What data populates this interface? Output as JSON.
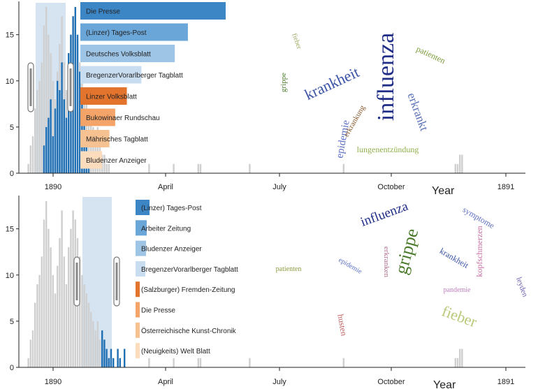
{
  "colors": {
    "highlight": "#d6e4f2",
    "hist_gray": "#cfcfcf",
    "hist_blue": "#1f6fb4",
    "axis": "#222222"
  },
  "chart_data": [
    {
      "type": "bar",
      "x_tick_labels": [
        "1890",
        "April",
        "July",
        "October",
        "1891"
      ],
      "xlabel": "Year",
      "y_ticks": [
        0,
        5,
        10,
        15
      ],
      "ylim": [
        0,
        18
      ],
      "histogram": {
        "gray": [
          0,
          0,
          1,
          3,
          4,
          7,
          9,
          10,
          12,
          16,
          18,
          15,
          13,
          10,
          8,
          11,
          14,
          17,
          12,
          9,
          13,
          15,
          17,
          16,
          14,
          12,
          10,
          9,
          8,
          7,
          6,
          5,
          4,
          5,
          3,
          2,
          2,
          1,
          1,
          0,
          0,
          0,
          0,
          0,
          0,
          0,
          0,
          0,
          0,
          0,
          0,
          0,
          0,
          0,
          0,
          0,
          1,
          0,
          0,
          0,
          0,
          0,
          0,
          0,
          0,
          0,
          0,
          1,
          0,
          0,
          0,
          0,
          0,
          0,
          0,
          0,
          0,
          0,
          1,
          1,
          0,
          0,
          0,
          0,
          0,
          0,
          0,
          0,
          0,
          0,
          0,
          0,
          0,
          0,
          0,
          0,
          0,
          0,
          0,
          0,
          0,
          1,
          0,
          0,
          0,
          0,
          0,
          0,
          0,
          0,
          0,
          0,
          0,
          0,
          0,
          0,
          0,
          0,
          0,
          0,
          0,
          0,
          0,
          0,
          0,
          0,
          0,
          0,
          0,
          0,
          0,
          0,
          0,
          0,
          0,
          0,
          0,
          0,
          0,
          0,
          0,
          0,
          0,
          1,
          0,
          0,
          0,
          0,
          0,
          0,
          0,
          0,
          0,
          0,
          0,
          0,
          0,
          0,
          0,
          0,
          0,
          0,
          0,
          0,
          0,
          0,
          0,
          0,
          0,
          0,
          0,
          0,
          0,
          0,
          0,
          0,
          0,
          0,
          0,
          0,
          0,
          0,
          0,
          0,
          0,
          0,
          0,
          0,
          0,
          0,
          0,
          0,
          0,
          1,
          1,
          2,
          2,
          0,
          0,
          0,
          0,
          0,
          0,
          0,
          0,
          0,
          0,
          0,
          0,
          0,
          0,
          0,
          0,
          0,
          0,
          0,
          0,
          0
        ],
        "blue": [
          0,
          0,
          0,
          0,
          0,
          0,
          0,
          0,
          0,
          3,
          5,
          6,
          8,
          4,
          7,
          10,
          9,
          12,
          8,
          6,
          13,
          15,
          17,
          18,
          15,
          11,
          8,
          6,
          4,
          2,
          0,
          0,
          0,
          0,
          0,
          0,
          0,
          0,
          0,
          0,
          0,
          0,
          0,
          0,
          0,
          0,
          0,
          0,
          0,
          0,
          0,
          0,
          0,
          0,
          0,
          0,
          0,
          0,
          0,
          0,
          0,
          0,
          0,
          0,
          0,
          0,
          0,
          0,
          0,
          0,
          0,
          0,
          0,
          0,
          0,
          0,
          0,
          0,
          0,
          0,
          0,
          0,
          0,
          0,
          0,
          0,
          0,
          0,
          0,
          0,
          0,
          0,
          0,
          0,
          0,
          0,
          0,
          0,
          0,
          0,
          0,
          0,
          0,
          0,
          0,
          0,
          0,
          0,
          0,
          0,
          0,
          0,
          0,
          0,
          0,
          0,
          0,
          0,
          0,
          0,
          0,
          0,
          0,
          0,
          0,
          0,
          0,
          0,
          0,
          0,
          0,
          0,
          0,
          0,
          0,
          0,
          0,
          0,
          0,
          0,
          0,
          0,
          0,
          0,
          0,
          0,
          0,
          0,
          0,
          0,
          0,
          0,
          0,
          0,
          0,
          0,
          0,
          0,
          0,
          0,
          0,
          0,
          0,
          0,
          0,
          0,
          0,
          0,
          0,
          0,
          0,
          0,
          0,
          0,
          0,
          0,
          0,
          0,
          0,
          0,
          0,
          0,
          0,
          0,
          0,
          0,
          0,
          0,
          0,
          0,
          0,
          0,
          0,
          0,
          0,
          0,
          0,
          0,
          0,
          0,
          0,
          0,
          0,
          0,
          0,
          0,
          0,
          0,
          0,
          0,
          0,
          0,
          0,
          0,
          0,
          0,
          0
        ]
      },
      "newspapers": [
        {
          "name": "Die Presse",
          "value": 1.0,
          "color": "#3d86c6"
        },
        {
          "name": "(Linzer) Tages-Post",
          "value": 0.74,
          "color": "#6aa6d8"
        },
        {
          "name": "Deutsches Volksblatt",
          "value": 0.65,
          "color": "#9ec4e6"
        },
        {
          "name": "BregenzerVorarlberger Tagblatt",
          "value": 0.42,
          "color": "#c9ddf0"
        },
        {
          "name": "Linzer Volksblatt",
          "value": 0.32,
          "color": "#e3742e"
        },
        {
          "name": "Bukowinaer Rundschau",
          "value": 0.24,
          "color": "#f4a469"
        },
        {
          "name": "Mährisches Tagblatt",
          "value": 0.2,
          "color": "#f7c292"
        },
        {
          "name": "Bludenzer Anzeiger",
          "value": 0.15,
          "color": "#fbdcbd"
        }
      ],
      "wordcloud": [
        {
          "w": "influenza",
          "size": 34,
          "color": "#1f2d86",
          "rot": -90
        },
        {
          "w": "krankheit",
          "size": 22,
          "color": "#3a53a6",
          "rot": -25
        },
        {
          "w": "erkrankt",
          "size": 17,
          "color": "#5b72b8",
          "rot": 70
        },
        {
          "w": "epidemie",
          "size": 15,
          "color": "#5d6fc4",
          "rot": -80
        },
        {
          "w": "lungenentzündung",
          "size": 12,
          "color": "#8fb04a",
          "rot": 0
        },
        {
          "w": "patienten",
          "size": 12,
          "color": "#7a9a3a",
          "rot": 25
        },
        {
          "w": "grippe",
          "size": 11,
          "color": "#4a7a2a",
          "rot": -90
        },
        {
          "w": "erkrankung",
          "size": 11,
          "color": "#8a5a30",
          "rot": -60
        },
        {
          "w": "fieber",
          "size": 10,
          "color": "#9aaa60",
          "rot": 70
        }
      ]
    },
    {
      "type": "bar",
      "x_tick_labels": [
        "1890",
        "April",
        "July",
        "October",
        "1891"
      ],
      "xlabel": "Year",
      "y_ticks": [
        0,
        5,
        10,
        15
      ],
      "ylim": [
        0,
        18
      ],
      "histogram": {
        "gray": [
          0,
          0,
          1,
          3,
          4,
          7,
          9,
          10,
          12,
          16,
          18,
          15,
          13,
          10,
          8,
          11,
          14,
          17,
          12,
          9,
          13,
          15,
          17,
          16,
          14,
          12,
          10,
          9,
          8,
          7,
          6,
          5,
          4,
          5,
          3,
          2,
          2,
          1,
          1,
          0,
          0,
          0,
          0,
          0,
          0,
          0,
          0,
          0,
          0,
          0,
          0,
          0,
          0,
          0,
          0,
          0,
          1,
          0,
          0,
          0,
          0,
          0,
          0,
          0,
          0,
          0,
          0,
          1,
          0,
          0,
          0,
          0,
          0,
          0,
          0,
          0,
          0,
          0,
          1,
          1,
          0,
          0,
          0,
          0,
          0,
          0,
          0,
          0,
          0,
          0,
          0,
          0,
          0,
          0,
          0,
          0,
          0,
          0,
          0,
          0,
          0,
          1,
          0,
          0,
          0,
          0,
          0,
          0,
          0,
          0,
          0,
          0,
          0,
          0,
          0,
          0,
          0,
          0,
          0,
          0,
          0,
          0,
          0,
          0,
          0,
          0,
          0,
          0,
          0,
          0,
          0,
          0,
          0,
          0,
          0,
          0,
          0,
          0,
          0,
          0,
          0,
          0,
          0,
          1,
          0,
          0,
          0,
          0,
          0,
          0,
          0,
          0,
          0,
          0,
          0,
          0,
          0,
          0,
          0,
          0,
          0,
          0,
          0,
          0,
          0,
          0,
          0,
          0,
          0,
          0,
          0,
          0,
          0,
          0,
          0,
          0,
          0,
          0,
          0,
          0,
          0,
          0,
          0,
          0,
          0,
          0,
          0,
          0,
          0,
          0,
          0,
          0,
          0,
          1,
          1,
          2,
          2,
          0,
          0,
          0,
          0,
          0,
          0,
          0,
          0,
          0,
          0,
          0,
          0,
          0,
          0,
          0,
          0,
          0,
          0,
          0,
          0,
          0
        ],
        "blue": [
          0,
          0,
          0,
          0,
          0,
          0,
          0,
          0,
          0,
          0,
          0,
          0,
          0,
          0,
          0,
          0,
          0,
          0,
          0,
          0,
          0,
          0,
          0,
          0,
          0,
          0,
          0,
          0,
          0,
          0,
          0,
          0,
          0,
          0,
          0,
          4,
          3,
          2,
          1,
          2,
          1,
          0,
          2,
          1,
          0,
          2,
          0,
          0,
          0,
          0,
          0,
          0,
          0,
          0,
          0,
          0,
          0,
          0,
          0,
          0,
          0,
          0,
          0,
          0,
          0,
          0,
          0,
          0,
          0,
          0,
          0,
          0,
          0,
          0,
          0,
          0,
          0,
          0,
          0,
          0,
          0,
          0,
          0,
          0,
          0,
          0,
          0,
          0,
          0,
          0,
          0,
          0,
          0,
          0,
          0,
          0,
          0,
          0,
          0,
          0,
          0,
          0,
          0,
          0,
          0,
          0,
          0,
          0,
          0,
          0,
          0,
          0,
          0,
          0,
          0,
          0,
          0,
          0,
          0,
          0,
          0,
          0,
          0,
          0,
          0,
          0,
          0,
          0,
          0,
          0,
          0,
          0,
          0,
          0,
          0,
          0,
          0,
          0,
          0,
          0,
          0,
          0,
          0,
          0,
          0,
          0,
          0,
          0,
          0,
          0,
          0,
          0,
          0,
          0,
          0,
          0,
          0,
          0,
          0,
          0,
          0,
          0,
          0,
          0,
          0,
          0,
          0,
          0,
          0,
          0,
          0,
          0,
          0,
          0,
          0,
          0,
          0,
          0,
          0,
          0,
          0,
          0,
          0,
          0,
          0,
          0,
          0,
          0,
          0,
          0,
          0,
          0,
          0,
          0,
          0,
          0,
          0,
          0,
          0,
          0,
          0,
          0,
          0,
          0,
          0,
          0,
          0,
          0,
          0,
          0,
          0,
          0
        ]
      },
      "newspapers": [
        {
          "name": "(Linzer) Tages-Post",
          "value": 1.0,
          "color": "#3d86c6"
        },
        {
          "name": "Arbeiter Zeitung",
          "value": 0.8,
          "color": "#6aa6d8"
        },
        {
          "name": "Bludenzer Anzeiger",
          "value": 0.75,
          "color": "#9ec4e6"
        },
        {
          "name": "BregenzerVorarlberger Tagblatt",
          "value": 0.7,
          "color": "#c9ddf0"
        },
        {
          "name": "(Salzburger) Fremden-Zeitung",
          "value": 0.3,
          "color": "#e3742e"
        },
        {
          "name": "Die Presse",
          "value": 0.28,
          "color": "#f4a469"
        },
        {
          "name": "Österreichische Kunst-Chronik",
          "value": 0.25,
          "color": "#f7c292"
        },
        {
          "name": "(Neuigkeits) Welt Blatt",
          "value": 0.2,
          "color": "#fbdcbd"
        }
      ],
      "wordcloud": [
        {
          "w": "grippe",
          "size": 26,
          "color": "#4a7a2a",
          "rot": -75
        },
        {
          "w": "influenza",
          "size": 19,
          "color": "#1f2d86",
          "rot": -20
        },
        {
          "w": "fieber",
          "size": 22,
          "color": "#b8c97a",
          "rot": 20
        },
        {
          "w": "krankheit",
          "size": 12,
          "color": "#3a53a6",
          "rot": 30
        },
        {
          "w": "kopfschmerzen",
          "size": 12,
          "color": "#c86aa0",
          "rot": -90
        },
        {
          "w": "husten",
          "size": 12,
          "color": "#c06060",
          "rot": 80
        },
        {
          "w": "symptome",
          "size": 12,
          "color": "#6070c0",
          "rot": 30
        },
        {
          "w": "erkranken",
          "size": 11,
          "color": "#b07090",
          "rot": 90
        },
        {
          "w": "leyden",
          "size": 11,
          "color": "#7060b0",
          "rot": 70
        },
        {
          "w": "pandemie",
          "size": 10,
          "color": "#c080c0",
          "rot": 0
        },
        {
          "w": "patienten",
          "size": 10,
          "color": "#8a9a40",
          "rot": 0
        },
        {
          "w": "epidemie",
          "size": 10,
          "color": "#5d6fc4",
          "rot": 30
        }
      ]
    }
  ]
}
